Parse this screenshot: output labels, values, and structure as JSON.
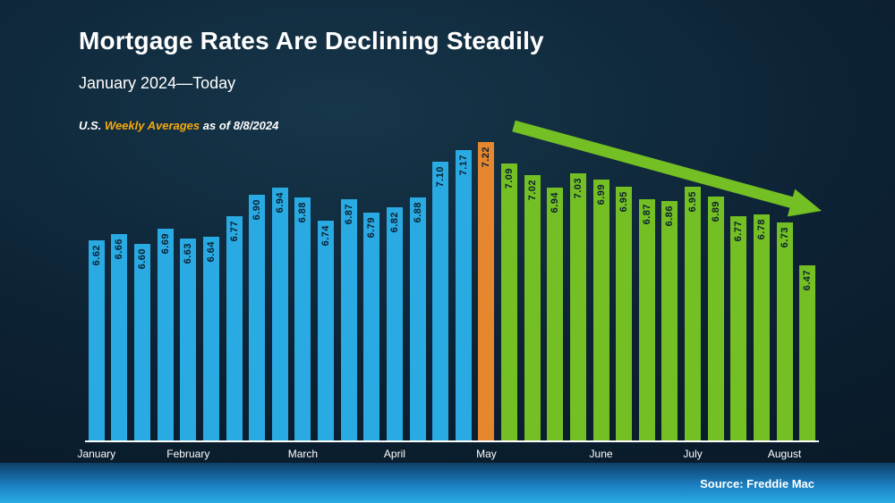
{
  "header": {
    "title": "Mortgage Rates Are Declining Steadily",
    "subtitle": "January 2024—Today"
  },
  "note": {
    "prefix": "U.S. ",
    "highlight": "Weekly Averages",
    "suffix": " as of 8/8/2024"
  },
  "footer": {
    "source": "Source: Freddie Mac"
  },
  "colors": {
    "blue": "#2aaae2",
    "orange": "#e6862e",
    "green": "#74bf23",
    "arrow": "#74bf23",
    "value_text": "#0b2132",
    "axis_line": "#ffffff"
  },
  "chart_data": {
    "type": "bar",
    "title": "Mortgage Rates Are Declining Steadily",
    "subtitle": "January 2024—Today",
    "note": "U.S. Weekly Averages as of 8/8/2024",
    "source": "Source: Freddie Mac",
    "unit": "percent",
    "ylim": [
      5.4,
      7.22
    ],
    "grid": false,
    "legend": false,
    "annotation": "green declining trend arrow over the green bars",
    "bars": [
      {
        "label": "6.62",
        "value": 6.62,
        "color": "blue"
      },
      {
        "label": "6.66",
        "value": 6.66,
        "color": "blue"
      },
      {
        "label": "6.60",
        "value": 6.6,
        "color": "blue"
      },
      {
        "label": "6.69",
        "value": 6.69,
        "color": "blue"
      },
      {
        "label": "6.63",
        "value": 6.63,
        "color": "blue"
      },
      {
        "label": "6.64",
        "value": 6.64,
        "color": "blue"
      },
      {
        "label": "6.77",
        "value": 6.77,
        "color": "blue"
      },
      {
        "label": "6.90",
        "value": 6.9,
        "color": "blue"
      },
      {
        "label": "6.94",
        "value": 6.94,
        "color": "blue"
      },
      {
        "label": "6.88",
        "value": 6.88,
        "color": "blue"
      },
      {
        "label": "6.74",
        "value": 6.74,
        "color": "blue"
      },
      {
        "label": "6.87",
        "value": 6.87,
        "color": "blue"
      },
      {
        "label": "6.79",
        "value": 6.79,
        "color": "blue"
      },
      {
        "label": "6.82",
        "value": 6.82,
        "color": "blue"
      },
      {
        "label": "6.88",
        "value": 6.88,
        "color": "blue"
      },
      {
        "label": "7.10",
        "value": 7.1,
        "color": "blue"
      },
      {
        "label": "7.17",
        "value": 7.17,
        "color": "blue"
      },
      {
        "label": "7.22",
        "value": 7.22,
        "color": "orange"
      },
      {
        "label": "7.09",
        "value": 7.09,
        "color": "green"
      },
      {
        "label": "7.02",
        "value": 7.02,
        "color": "green"
      },
      {
        "label": "6.94",
        "value": 6.94,
        "color": "green"
      },
      {
        "label": "7.03",
        "value": 7.03,
        "color": "green"
      },
      {
        "label": "6.99",
        "value": 6.99,
        "color": "green"
      },
      {
        "label": "6.95",
        "value": 6.95,
        "color": "green"
      },
      {
        "label": "6.87",
        "value": 6.87,
        "color": "green"
      },
      {
        "label": "6.86",
        "value": 6.86,
        "color": "green"
      },
      {
        "label": "6.95",
        "value": 6.95,
        "color": "green"
      },
      {
        "label": "6.89",
        "value": 6.89,
        "color": "green"
      },
      {
        "label": "6.77",
        "value": 6.77,
        "color": "green"
      },
      {
        "label": "6.78",
        "value": 6.78,
        "color": "green"
      },
      {
        "label": "6.73",
        "value": 6.73,
        "color": "green"
      },
      {
        "label": "6.47",
        "value": 6.47,
        "color": "green"
      }
    ],
    "months": [
      {
        "label": "January",
        "first_bar_index": 0
      },
      {
        "label": "February",
        "first_bar_index": 4
      },
      {
        "label": "March",
        "first_bar_index": 9
      },
      {
        "label": "April",
        "first_bar_index": 13
      },
      {
        "label": "May",
        "first_bar_index": 17
      },
      {
        "label": "June",
        "first_bar_index": 22
      },
      {
        "label": "July",
        "first_bar_index": 26
      },
      {
        "label": "August",
        "first_bar_index": 30
      }
    ]
  }
}
